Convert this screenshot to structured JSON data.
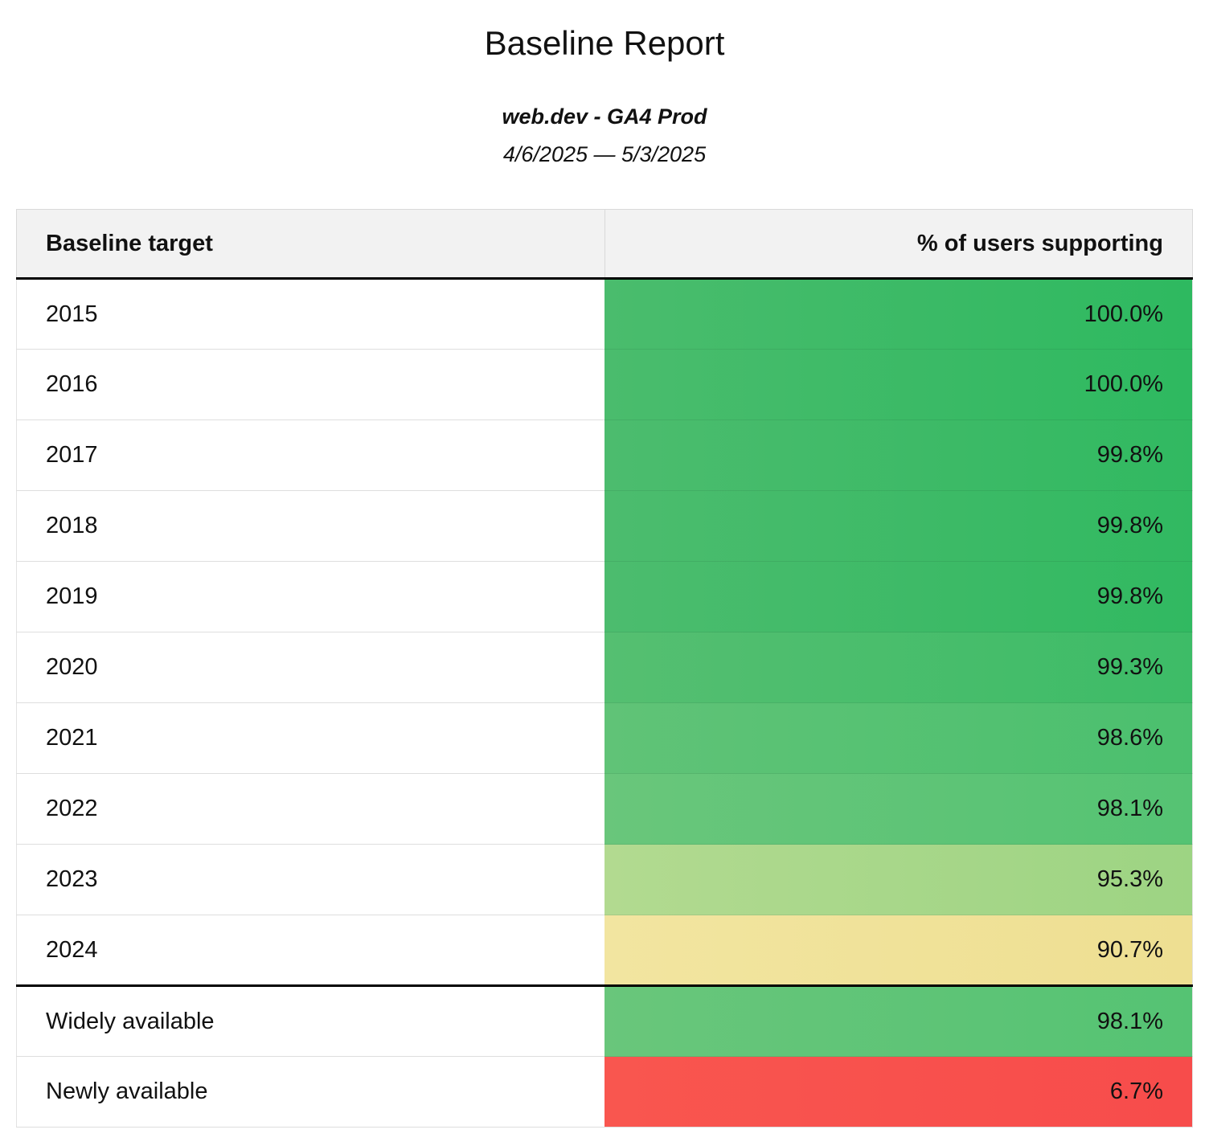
{
  "page": {
    "title": "Baseline Report",
    "subtitle": "web.dev - GA4 Prod",
    "date_range": "4/6/2025 — 5/3/2025"
  },
  "table": {
    "headers": [
      {
        "label": "Baseline target"
      },
      {
        "label": "% of users supporting"
      }
    ],
    "rows": [
      {
        "target": "2015",
        "value": "100.0%",
        "color_from": "#4abc6d",
        "color_to": "#2eb960",
        "section_break": false
      },
      {
        "target": "2016",
        "value": "100.0%",
        "color_from": "#4abc6d",
        "color_to": "#2eb960",
        "section_break": false
      },
      {
        "target": "2017",
        "value": "99.8%",
        "color_from": "#4cbc6e",
        "color_to": "#31b961",
        "section_break": false
      },
      {
        "target": "2018",
        "value": "99.8%",
        "color_from": "#4cbc6e",
        "color_to": "#31b961",
        "section_break": false
      },
      {
        "target": "2019",
        "value": "99.8%",
        "color_from": "#4cbc6e",
        "color_to": "#31b961",
        "section_break": false
      },
      {
        "target": "2020",
        "value": "99.3%",
        "color_from": "#55bf71",
        "color_to": "#3dbc67",
        "section_break": false
      },
      {
        "target": "2021",
        "value": "98.6%",
        "color_from": "#60c377",
        "color_to": "#4bc06e",
        "section_break": false
      },
      {
        "target": "2022",
        "value": "98.1%",
        "color_from": "#69c67b",
        "color_to": "#55c373",
        "section_break": false
      },
      {
        "target": "2023",
        "value": "95.3%",
        "color_from": "#b2da90",
        "color_to": "#9dd483",
        "section_break": false
      },
      {
        "target": "2024",
        "value": "90.7%",
        "color_from": "#f2e5a0",
        "color_to": "#eedf92",
        "section_break": false
      },
      {
        "target": "Widely available",
        "value": "98.1%",
        "color_from": "#69c67b",
        "color_to": "#55c373",
        "section_break": true
      },
      {
        "target": "Newly available",
        "value": "6.7%",
        "color_from": "#f9564f",
        "color_to": "#f74c4b",
        "section_break": false
      }
    ]
  },
  "chart_data": {
    "type": "table",
    "title": "Baseline Report",
    "subtitle": "web.dev - GA4 Prod",
    "date_range": "4/6/2025 — 5/3/2025",
    "columns": [
      "Baseline target",
      "% of users supporting"
    ],
    "categories": [
      "2015",
      "2016",
      "2017",
      "2018",
      "2019",
      "2020",
      "2021",
      "2022",
      "2023",
      "2024",
      "Widely available",
      "Newly available"
    ],
    "values": [
      100.0,
      100.0,
      99.8,
      99.8,
      99.8,
      99.3,
      98.6,
      98.1,
      95.3,
      90.7,
      98.1,
      6.7
    ],
    "value_unit": "%",
    "heatmap_colors": [
      "#2eb960",
      "#2eb960",
      "#31b961",
      "#31b961",
      "#31b961",
      "#3dbc67",
      "#4bc06e",
      "#55c373",
      "#9dd483",
      "#eedf92",
      "#55c373",
      "#f74c4b"
    ],
    "legend_position": "none",
    "notes": "Value column cells use a red-yellow-green heatmap fill; thick black rule below header and above 'Widely available' row."
  }
}
